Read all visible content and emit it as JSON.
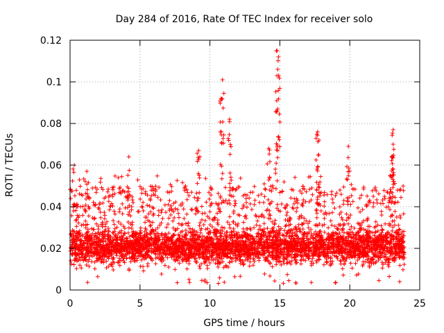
{
  "chart_data": {
    "type": "scatter",
    "title": "Day 284 of 2016, Rate Of TEC Index for receiver solo",
    "xlabel": "GPS time / hours",
    "ylabel": "ROTI / TECUs",
    "xlim": [
      0,
      25
    ],
    "ylim": [
      0,
      0.12
    ],
    "xticks": [
      0,
      5,
      10,
      15,
      20,
      25
    ],
    "xtick_labels": [
      "0",
      "5",
      "10",
      "15",
      "20",
      "25"
    ],
    "yticks": [
      0,
      0.02,
      0.04,
      0.06,
      0.08,
      0.1,
      0.12
    ],
    "ytick_labels": [
      "0",
      "0.02",
      "0.04",
      "0.06",
      "0.08",
      "0.1",
      "0.12"
    ],
    "grid": true,
    "marker": "+",
    "series_color": "#ff0000",
    "data_range_x": [
      0,
      23.9
    ],
    "baseline_band_y": [
      0.007,
      0.03
    ],
    "notable_peaks": [
      {
        "x": 0.3,
        "y": 0.06
      },
      {
        "x": 1.2,
        "y": 0.057
      },
      {
        "x": 4.2,
        "y": 0.064
      },
      {
        "x": 9.2,
        "y": 0.067
      },
      {
        "x": 10.8,
        "y": 0.092
      },
      {
        "x": 10.9,
        "y": 0.101
      },
      {
        "x": 11.4,
        "y": 0.082
      },
      {
        "x": 14.2,
        "y": 0.068
      },
      {
        "x": 14.8,
        "y": 0.115
      },
      {
        "x": 14.9,
        "y": 0.112
      },
      {
        "x": 14.8,
        "y": 0.086
      },
      {
        "x": 17.7,
        "y": 0.076
      },
      {
        "x": 17.8,
        "y": 0.072
      },
      {
        "x": 19.9,
        "y": 0.069
      },
      {
        "x": 23.1,
        "y": 0.077
      },
      {
        "x": 23.1,
        "y": 0.07
      },
      {
        "x": 23.0,
        "y": 0.064
      }
    ]
  }
}
